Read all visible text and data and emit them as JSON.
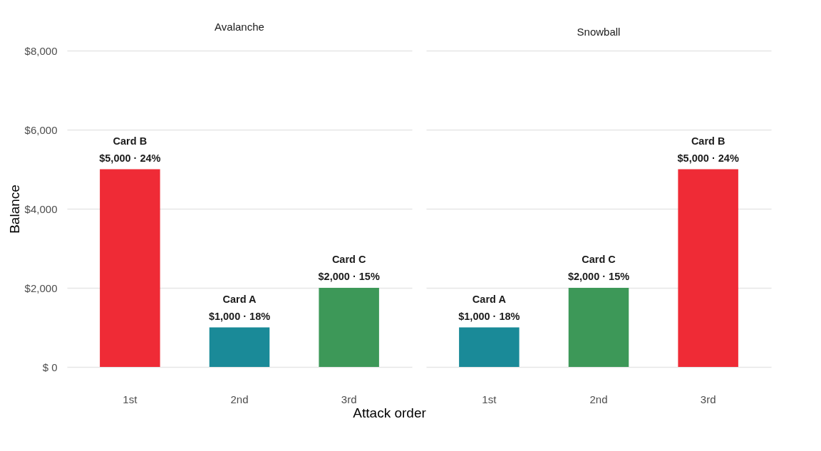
{
  "chart_data": [
    {
      "type": "bar",
      "title": "Avalanche",
      "ylabel": "Balance",
      "xlabel": "Attack order",
      "categories": [
        "1st",
        "2nd",
        "3rd"
      ],
      "values": [
        5000,
        1000,
        2000
      ],
      "colors": [
        "#ef2b36",
        "#1a8a98",
        "#3d9858"
      ],
      "value_labels": [
        "Card B\n$5,000 · 24%",
        "Card A\n$1,000 · 18%",
        "Card C\n$2,000 · 15%"
      ],
      "ylim": [
        0,
        8000
      ],
      "yticks": [
        {
          "value": 0,
          "label": "$     0"
        },
        {
          "value": 2000,
          "label": "$2,000"
        },
        {
          "value": 4000,
          "label": "$4,000"
        },
        {
          "value": 6000,
          "label": "$6,000"
        },
        {
          "value": 8000,
          "label": "$8,000"
        }
      ],
      "grid": "y"
    },
    {
      "type": "bar",
      "title": "Snowball",
      "categories": [
        "1st",
        "2nd",
        "3rd"
      ],
      "values": [
        1000,
        2000,
        5000
      ],
      "colors": [
        "#1a8a98",
        "#3d9858",
        "#ef2b36"
      ],
      "value_labels": [
        "Card A\n$1,000 · 18%",
        "Card C\n$2,000 · 15%",
        "Card B\n$5,000 · 24%"
      ],
      "ylim": [
        0,
        8000
      ],
      "yticks": [
        0,
        2000,
        4000,
        6000,
        8000
      ],
      "grid": "y",
      "tick_labels": "x"
    }
  ]
}
